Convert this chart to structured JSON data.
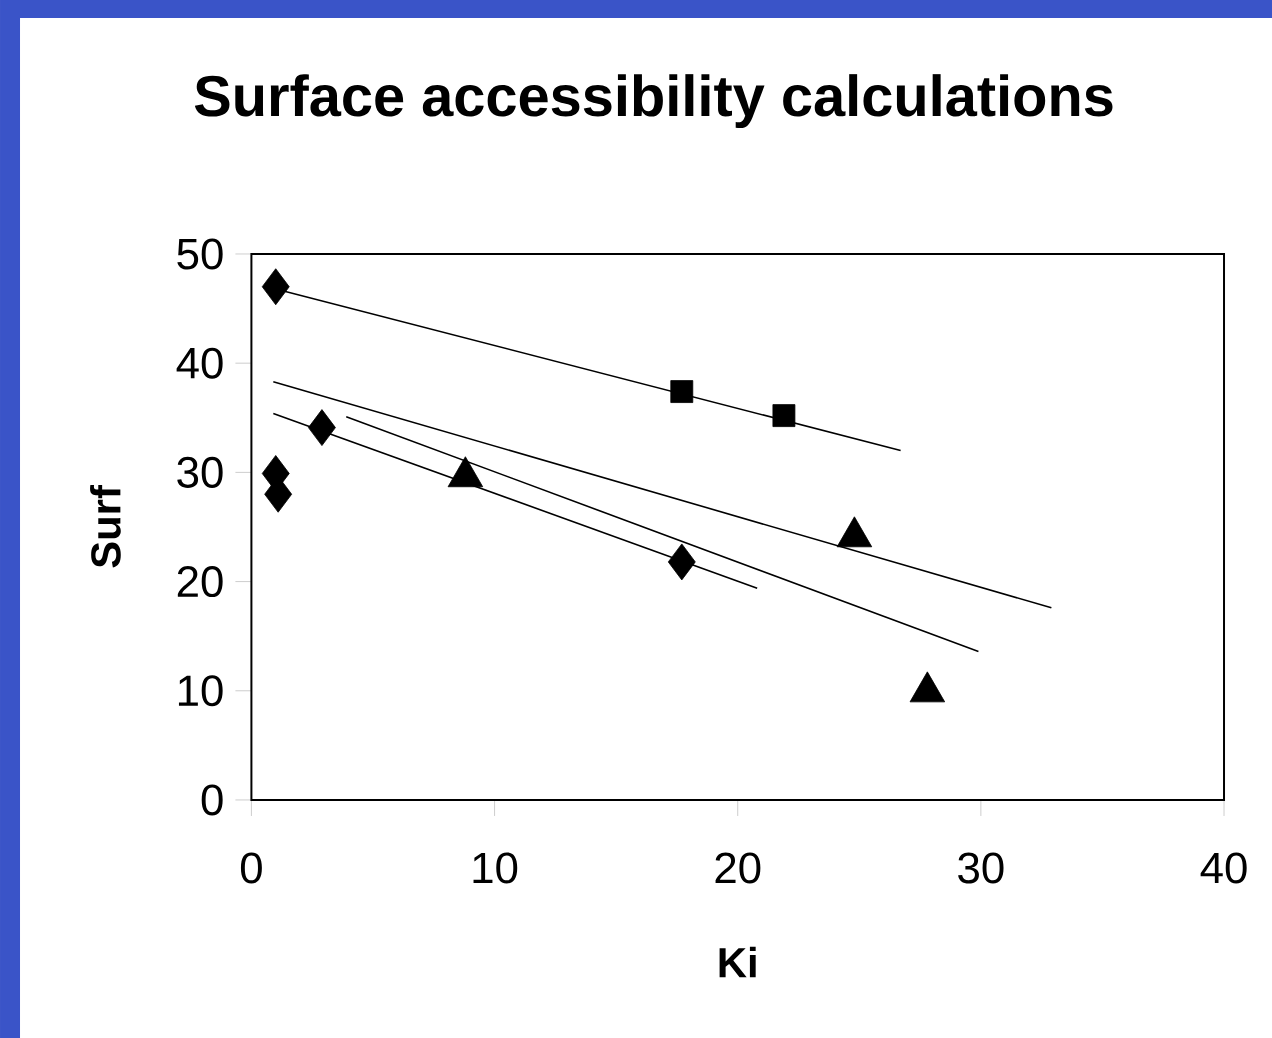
{
  "chart_data": {
    "type": "scatter",
    "title": "Surface accessibility calculations",
    "xlabel": "Ki",
    "ylabel": "Surf",
    "xlim": [
      0,
      40
    ],
    "ylim": [
      0,
      50
    ],
    "xticks": [
      0,
      10,
      20,
      30,
      40
    ],
    "yticks": [
      0,
      10,
      20,
      30,
      40,
      50
    ],
    "grid": false,
    "series": [
      {
        "marker": "diamond",
        "color": "#000000",
        "x": [
          1,
          1,
          1.1,
          2.9,
          17.7
        ],
        "values": [
          47,
          29.9,
          28,
          34.1,
          21.8
        ]
      },
      {
        "marker": "square",
        "color": "#000000",
        "x": [
          17.7,
          21.9
        ],
        "values": [
          37.4,
          35.2
        ]
      },
      {
        "marker": "triangle",
        "color": "#000000",
        "x": [
          8.8,
          24.8,
          27.8
        ],
        "values": [
          29.6,
          24.1,
          9.9
        ]
      },
      {
        "type": "line",
        "marker": "none",
        "line_style": "solid",
        "color": "#000000",
        "x": [
          1,
          26.7
        ],
        "values": [
          46.8,
          32
        ]
      },
      {
        "type": "line",
        "marker": "none",
        "line_style": "solid",
        "color": "#000000",
        "x": [
          0.9,
          32.9
        ],
        "values": [
          38.3,
          17.6
        ]
      },
      {
        "type": "line",
        "marker": "none",
        "line_style": "solid",
        "color": "#000000",
        "x": [
          3.9,
          29.9
        ],
        "values": [
          35.1,
          13.6
        ]
      },
      {
        "type": "line",
        "marker": "none",
        "line_style": "solid",
        "color": "#000000",
        "x": [
          0.9,
          20.8
        ],
        "values": [
          35.4,
          19.4
        ]
      }
    ]
  }
}
